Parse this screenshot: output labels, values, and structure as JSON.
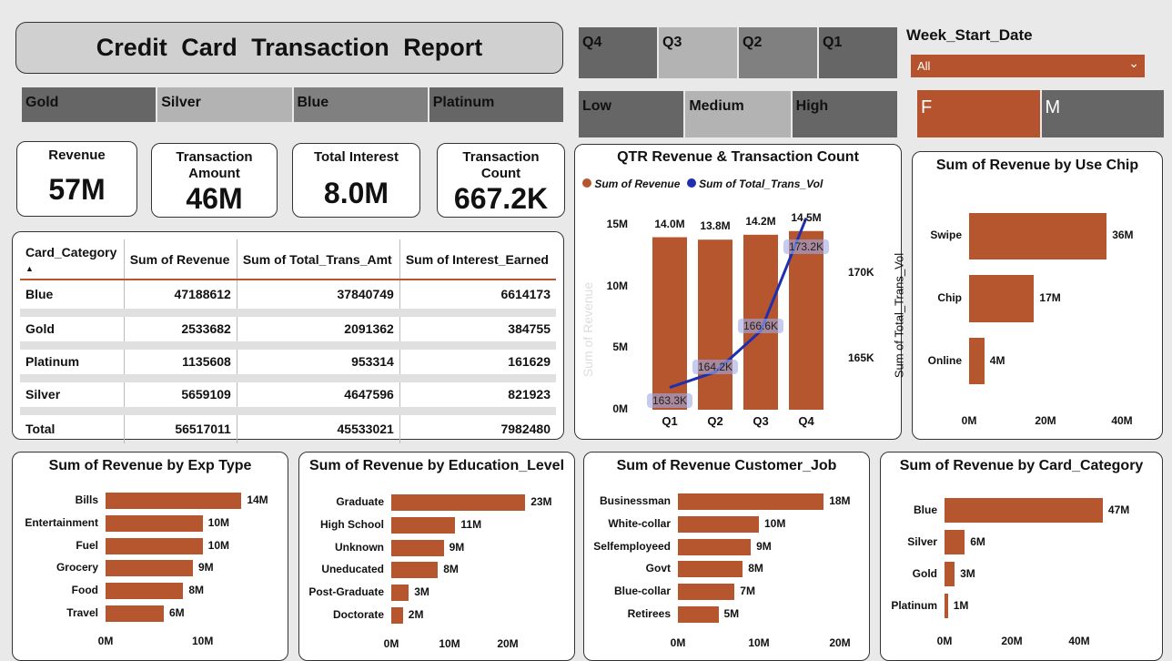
{
  "title": "Credit Card Transaction Report",
  "card_slicer": [
    {
      "label": "Gold",
      "color": "#666666"
    },
    {
      "label": "Silver",
      "color": "#b3b3b3"
    },
    {
      "label": "Blue",
      "color": "#808080"
    },
    {
      "label": "Platinum",
      "color": "#666666"
    }
  ],
  "quarter_slicer": [
    {
      "label": "Q4",
      "color": "#666666"
    },
    {
      "label": "Q3",
      "color": "#b3b3b3"
    },
    {
      "label": "Q2",
      "color": "#808080"
    },
    {
      "label": "Q1",
      "color": "#666666"
    }
  ],
  "income_slicer": [
    {
      "label": "Low",
      "color": "#666666"
    },
    {
      "label": "Medium",
      "color": "#b3b3b3"
    },
    {
      "label": "High",
      "color": "#666666"
    }
  ],
  "week_filter": {
    "label": "Week_Start_Date",
    "value": "All"
  },
  "gender_slicer": [
    {
      "label": "F",
      "color": "#b5532e"
    },
    {
      "label": "M",
      "color": "#666666"
    }
  ],
  "kpis": [
    {
      "label": "Revenue",
      "value": "57M"
    },
    {
      "label": "Transaction Amount",
      "value": "46M"
    },
    {
      "label": "Total Interest",
      "value": "8.0M"
    },
    {
      "label": "Transaction Count",
      "value": "667.2K"
    }
  ],
  "table": {
    "headers": [
      "Card_Category",
      "Sum of Revenue",
      "Sum of Total_Trans_Amt",
      "Sum of Interest_Earned"
    ],
    "sort_indicator": "▲",
    "rows": [
      [
        "Blue",
        "47188612",
        "37840749",
        "6614173"
      ],
      [
        "Gold",
        "2533682",
        "2091362",
        "384755"
      ],
      [
        "Platinum",
        "1135608",
        "953314",
        "161629"
      ],
      [
        "Silver",
        "5659109",
        "4647596",
        "821923"
      ]
    ],
    "total": [
      "Total",
      "56517011",
      "45533021",
      "7982480"
    ]
  },
  "accent": "#b5562f",
  "chart_data": [
    {
      "type": "bar+line",
      "title": "QTR Revenue & Transaction Count",
      "categories": [
        "Q1",
        "Q2",
        "Q3",
        "Q4"
      ],
      "series": [
        {
          "name": "Sum of Revenue",
          "values": [
            14.0,
            13.8,
            14.2,
            14.5
          ],
          "labels": [
            "14.0M",
            "13.8M",
            "14.2M",
            "14.5M"
          ],
          "color": "#b5562f"
        },
        {
          "name": "Sum of Total_Trans_Vol",
          "values": [
            163.3,
            164.2,
            166.6,
            173.2
          ],
          "labels": [
            "163.3K",
            "164.2K",
            "166.6K",
            "173.2K"
          ],
          "color": "#1f2fb0"
        }
      ],
      "ylabel": "Sum of Revenue",
      "y2label": "Sum of Total_Trans_Vol",
      "ylim": [
        0,
        15
      ],
      "y2lim": [
        162,
        172.8
      ],
      "yticks": [
        "0M",
        "5M",
        "10M",
        "15M"
      ],
      "ytick_values": [
        0,
        5,
        10,
        15
      ],
      "y2ticks": [
        "165K",
        "170K"
      ],
      "y2tick_values": [
        165,
        170
      ],
      "legend": "top-left"
    },
    {
      "type": "bar",
      "orientation": "horizontal",
      "title": "Sum of Revenue by Use Chip",
      "categories": [
        "Swipe",
        "Chip",
        "Online"
      ],
      "values": [
        36,
        17,
        4
      ],
      "labels": [
        "36M",
        "17M",
        "4M"
      ],
      "xlim": [
        0,
        40
      ],
      "xticks": [
        "0M",
        "20M",
        "40M"
      ],
      "xtick_values": [
        0,
        20,
        40
      ]
    },
    {
      "type": "bar",
      "orientation": "horizontal",
      "title": "Sum of Revenue by Exp Type",
      "categories": [
        "Bills",
        "Entertainment",
        "Fuel",
        "Grocery",
        "Food",
        "Travel"
      ],
      "values": [
        14,
        10,
        10,
        9,
        8,
        6
      ],
      "labels": [
        "14M",
        "10M",
        "10M",
        "9M",
        "8M",
        "6M"
      ],
      "xlim": [
        0,
        15
      ],
      "xticks": [
        "0M",
        "10M"
      ],
      "xtick_values": [
        0,
        10
      ]
    },
    {
      "type": "bar",
      "orientation": "horizontal",
      "title": "Sum of Revenue by Education_Level",
      "categories": [
        "Graduate",
        "High School",
        "Unknown",
        "Uneducated",
        "Post-Graduate",
        "Doctorate"
      ],
      "values": [
        23,
        11,
        9,
        8,
        3,
        2
      ],
      "labels": [
        "23M",
        "11M",
        "9M",
        "8M",
        "3M",
        "2M"
      ],
      "xlim": [
        0,
        25
      ],
      "xticks": [
        "0M",
        "10M",
        "20M"
      ],
      "xtick_values": [
        0,
        10,
        20
      ]
    },
    {
      "type": "bar",
      "orientation": "horizontal",
      "title": "Sum of Revenue Customer_Job",
      "categories": [
        "Businessman",
        "White-collar",
        "Selfemployeed",
        "Govt",
        "Blue-collar",
        "Retirees"
      ],
      "values": [
        18,
        10,
        9,
        8,
        7,
        5
      ],
      "labels": [
        "18M",
        "10M",
        "9M",
        "8M",
        "7M",
        "5M"
      ],
      "xlim": [
        0,
        20
      ],
      "xticks": [
        "0M",
        "10M",
        "20M"
      ],
      "xtick_values": [
        0,
        10,
        20
      ]
    },
    {
      "type": "bar",
      "orientation": "horizontal",
      "title": "Sum of Revenue by Card_Category",
      "categories": [
        "Blue",
        "Silver",
        "Gold",
        "Platinum"
      ],
      "values": [
        47,
        6,
        3,
        1
      ],
      "labels": [
        "47M",
        "6M",
        "3M",
        "1M"
      ],
      "xlim": [
        0,
        50
      ],
      "xticks": [
        "0M",
        "20M",
        "40M"
      ],
      "xtick_values": [
        0,
        20,
        40
      ]
    }
  ]
}
